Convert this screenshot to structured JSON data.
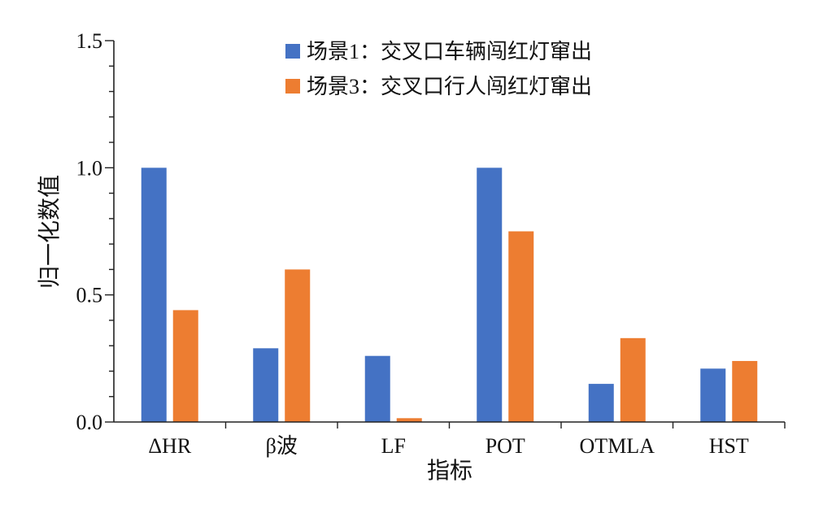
{
  "chart_data": {
    "type": "bar",
    "title": "",
    "xlabel": "指标",
    "ylabel": "归一化数值",
    "ylim": [
      0,
      1.5
    ],
    "yticks": [
      "0.0",
      "0.5",
      "1.0",
      "1.5"
    ],
    "categories": [
      "ΔHR",
      "β波",
      "LF",
      "POT",
      "OTMLA",
      "HST"
    ],
    "series": [
      {
        "name": "场景1：交叉口车辆闯红灯窜出",
        "color": "#4472C4",
        "values": [
          1.0,
          0.29,
          0.26,
          1.0,
          0.15,
          0.21
        ]
      },
      {
        "name": "场景3：交叉口行人闯红灯窜出",
        "color": "#ED7D31",
        "values": [
          0.44,
          0.6,
          0.015,
          0.75,
          0.33,
          0.24
        ]
      }
    ],
    "legend_position": "top-right",
    "grid": false
  }
}
